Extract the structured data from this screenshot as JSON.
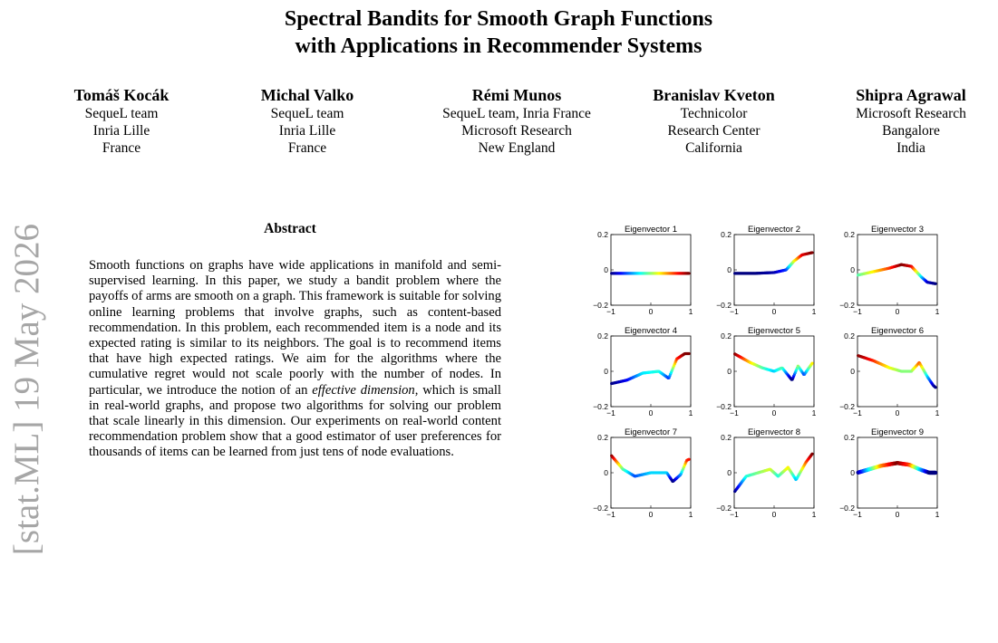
{
  "arxiv_stamp": "[stat.ML]   19 May 2026",
  "title": {
    "line1": "Spectral Bandits for Smooth Graph Functions",
    "line2": "with Applications in Recommender Systems"
  },
  "authors": [
    {
      "name": "Tomáš Kocák",
      "affiliation": [
        "SequeL team",
        "Inria Lille",
        "France"
      ]
    },
    {
      "name": "Michal Valko",
      "affiliation": [
        "SequeL team",
        "Inria Lille",
        "France"
      ]
    },
    {
      "name": "Rémi Munos",
      "affiliation": [
        "SequeL team, Inria France",
        "Microsoft Research",
        "New England"
      ]
    },
    {
      "name": "Branislav Kveton",
      "affiliation": [
        "Technicolor",
        "Research Center",
        "California"
      ]
    },
    {
      "name": "Shipra Agrawal",
      "affiliation": [
        "Microsoft Research",
        "Bangalore",
        "India"
      ]
    }
  ],
  "abstract": {
    "heading": "Abstract",
    "text_before": "Smooth functions on graphs have wide applications in manifold and semi-supervised learning. In this paper, we study a bandit problem where the payoffs of arms are smooth on a graph. This framework is suitable for solving online learning problems that involve graphs, such as content-based recommendation. In this problem, each recommended item is a node and its expected rating is similar to its neighbors. The goal is to recommend items that have high expected ratings. We aim for the algorithms where the cumulative regret would not scale poorly with the number of nodes. In particular, we introduce the notion of an ",
    "emphasis": "effective dimension",
    "text_after": ", which is small in real-world graphs, and propose two algorithms for solving our problem that scale linearly in this dimension. Our experiments on real-world content recommendation problem show that a good estimator of user preferences for thousands of items can be learned from just tens of node evaluations."
  },
  "chart_data": {
    "type": "scatter",
    "layout": "3x3 grid of small multiples",
    "xlim": [
      -1,
      1
    ],
    "ylim": [
      -0.2,
      0.2
    ],
    "xticks": [
      "−1",
      "0",
      "1"
    ],
    "yticks": [
      "0.2",
      "0",
      "−0.2"
    ],
    "color_map": "jet",
    "panels": [
      {
        "title": "Eigenvector 1",
        "x": [
          -1,
          -0.5,
          0,
          0.5,
          1
        ],
        "y": [
          -0.02,
          -0.02,
          -0.02,
          -0.02,
          -0.02
        ]
      },
      {
        "title": "Eigenvector 2",
        "x": [
          -1,
          -0.5,
          0,
          0.3,
          0.5,
          0.7,
          1
        ],
        "y": [
          -0.02,
          -0.02,
          -0.015,
          0.0,
          0.05,
          0.085,
          0.1
        ]
      },
      {
        "title": "Eigenvector 3",
        "x": [
          -1,
          -0.6,
          -0.2,
          0.1,
          0.35,
          0.6,
          0.75,
          1
        ],
        "y": [
          -0.03,
          -0.01,
          0.01,
          0.03,
          0.02,
          -0.04,
          -0.07,
          -0.08
        ]
      },
      {
        "title": "Eigenvector 4",
        "x": [
          -1,
          -0.6,
          -0.2,
          0.2,
          0.45,
          0.65,
          0.85,
          1
        ],
        "y": [
          -0.07,
          -0.05,
          -0.01,
          0.0,
          -0.04,
          0.07,
          0.1,
          0.1
        ]
      },
      {
        "title": "Eigenvector 5",
        "x": [
          -1,
          -0.6,
          -0.3,
          0.0,
          0.2,
          0.45,
          0.6,
          0.75,
          1
        ],
        "y": [
          0.1,
          0.05,
          0.02,
          0.0,
          0.02,
          -0.05,
          0.03,
          -0.02,
          0.06
        ]
      },
      {
        "title": "Eigenvector 6",
        "x": [
          -1,
          -0.6,
          -0.2,
          0.1,
          0.35,
          0.55,
          0.75,
          0.9,
          1
        ],
        "y": [
          0.09,
          0.06,
          0.02,
          0.0,
          0.0,
          0.05,
          -0.03,
          -0.08,
          -0.1
        ]
      },
      {
        "title": "Eigenvector 7",
        "x": [
          -1,
          -0.7,
          -0.4,
          0.0,
          0.4,
          0.55,
          0.75,
          0.9,
          1
        ],
        "y": [
          0.1,
          0.02,
          -0.02,
          0.0,
          0.0,
          -0.05,
          -0.01,
          0.07,
          0.08
        ]
      },
      {
        "title": "Eigenvector 8",
        "x": [
          -1,
          -0.7,
          -0.4,
          -0.1,
          0.1,
          0.35,
          0.55,
          0.8,
          1
        ],
        "y": [
          -0.11,
          -0.02,
          0.0,
          0.02,
          -0.02,
          0.03,
          -0.04,
          0.06,
          0.12
        ]
      },
      {
        "title": "Eigenvector 9",
        "x": [
          -1,
          -0.7,
          -0.4,
          0.0,
          0.3,
          0.55,
          0.8,
          1
        ],
        "y": [
          0.0,
          0.02,
          0.04,
          0.055,
          0.045,
          0.02,
          0.0,
          0.0
        ]
      }
    ]
  }
}
